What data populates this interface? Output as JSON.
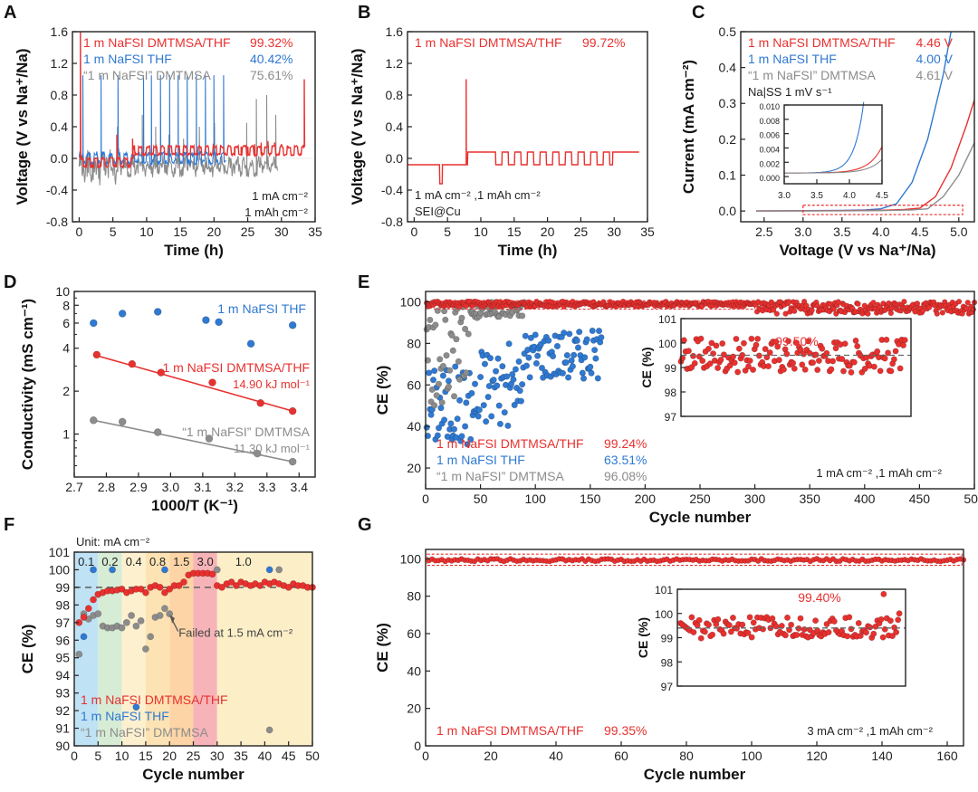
{
  "colors": {
    "red": "#e8312f",
    "blue": "#2f79d2",
    "gray": "#8c8c8c",
    "dash": "#666666"
  },
  "chart_data": [
    {
      "panel": "A",
      "type": "line",
      "xlabel": "Time (h)",
      "ylabel": "Voltage (V vs Na⁺/Na)",
      "xlim": [
        -1,
        35
      ],
      "ylim": [
        -0.8,
        1.6
      ],
      "xticks": [
        "0",
        "5",
        "10",
        "15",
        "20",
        "25",
        "30",
        "35"
      ],
      "yticks": [
        "-0.8",
        "-0.4",
        "0.0",
        "0.4",
        "0.8",
        "1.2",
        "1.6"
      ],
      "legend": [
        {
          "name": "1 m NaFSI DMTMSA/THF",
          "value": "99.32%",
          "color": "red"
        },
        {
          "name": "1 m NaFSI THF",
          "value": "40.42%",
          "color": "blue"
        },
        {
          "name": "“1 m NaFSI” DMTMSA",
          "value": "75.61%",
          "color": "gray"
        }
      ],
      "annotations": [
        "1 mA cm⁻²",
        "1 mAh cm⁻²"
      ],
      "series": [
        {
          "name": "1 m NaFSI DMTMSA/THF",
          "color": "red",
          "end_h": 33.5,
          "spikes_h": [
            0.2,
            5.6,
            7.9,
            23,
            24,
            25,
            26,
            27,
            28,
            29,
            30,
            31,
            33.4
          ],
          "spike_v": [
            1.6,
            0.3,
            0.25,
            0.15,
            0.15,
            0.15,
            0.18,
            0.2,
            0.22,
            0.2,
            0.18,
            0.15,
            1.0
          ]
        },
        {
          "name": "1 m NaFSI THF",
          "color": "blue",
          "end_h": 21.8,
          "spikes_h": [
            0.5,
            3.2,
            5.8,
            9.5,
            10.7,
            12.1,
            13.4,
            14.7,
            16.0,
            17.4,
            18.7,
            20.0,
            21.4
          ],
          "spike_v": [
            1.05,
            1.05,
            1.05,
            1.05,
            1.05,
            1.05,
            1.05,
            1.05,
            1.05,
            1.05,
            1.05,
            1.05,
            1.05
          ]
        },
        {
          "name": "“1 m NaFSI” DMTMSA",
          "color": "gray",
          "end_h": 29.5,
          "spikes_h": [
            5.7,
            9.4,
            11.3,
            13.3,
            15.5,
            17.8,
            20.1,
            24.8,
            26.3,
            27.8,
            29.2
          ],
          "spike_v": [
            0.4,
            0.55,
            0.4,
            0.3,
            0.25,
            0.4,
            0.45,
            0.45,
            0.75,
            0.8,
            0.55
          ]
        }
      ]
    },
    {
      "panel": "B",
      "type": "line",
      "xlabel": "Time (h)",
      "ylabel": "Voltage (V vs Na⁺/Na)",
      "xlim": [
        -1,
        35
      ],
      "ylim": [
        -0.8,
        1.6
      ],
      "xticks": [
        "0",
        "5",
        "10",
        "15",
        "20",
        "25",
        "30",
        "35"
      ],
      "yticks": [
        "-0.8",
        "-0.4",
        "0.0",
        "0.4",
        "0.8",
        "1.2",
        "1.6"
      ],
      "legend": [
        {
          "name": "1 m NaFSI DMTMSA/THF",
          "value": "99.72%",
          "color": "red"
        }
      ],
      "annotations": [
        "1 mA cm⁻² ,1 mAh cm⁻²",
        "SEI@Cu"
      ],
      "series": [
        {
          "name": "1 m NaFSI DMTMSA/THF",
          "color": "red",
          "segments_h": [
            [
              -1,
              3.8
            ],
            [
              4.2,
              7.6
            ],
            [
              8.0,
              11.2
            ],
            [
              11.6,
              29.8
            ],
            [
              30.2,
              33.7
            ]
          ],
          "spike_h": [
            7.8,
            33.8
          ],
          "spike_v": [
            1.0,
            1.0
          ]
        }
      ]
    },
    {
      "panel": "C",
      "type": "line",
      "xlabel": "Voltage (V vs Na⁺/Na)",
      "ylabel": "Current (mA cm⁻²)",
      "xlim": [
        2.2,
        5.2
      ],
      "ylim": [
        -0.03,
        0.5
      ],
      "xticks": [
        "2.5",
        "3.0",
        "3.5",
        "4.0",
        "4.5",
        "5.0"
      ],
      "yticks": [
        "0.0",
        "0.1",
        "0.2",
        "0.3",
        "0.4",
        "0.5"
      ],
      "legend": [
        {
          "name": "1 m NaFSI DMTMSA/THF",
          "value": "4.46 V",
          "color": "red"
        },
        {
          "name": "1 m NaFSI THF",
          "value": "4.00 V",
          "color": "blue"
        },
        {
          "name": "“1 m NaFSI” DMTMSA",
          "value": "4.61 V",
          "color": "gray"
        }
      ],
      "annotations": [
        "Na|SS 1 mV s⁻¹"
      ],
      "inset": {
        "xlim": [
          3.0,
          4.5
        ],
        "ylim": [
          -0.001,
          0.01
        ],
        "xticks": [
          "3.0",
          "3.5",
          "4.0",
          "4.5"
        ],
        "yticks": [
          "0.000",
          "0.002",
          "0.004",
          "0.006",
          "0.008",
          "0.010"
        ]
      },
      "series": [
        {
          "name": "1 m NaFSI THF",
          "color": "blue",
          "onset": 4.0,
          "x": [
            2.4,
            3.0,
            3.5,
            3.8,
            4.0,
            4.2,
            4.4,
            4.6,
            4.8,
            4.9
          ],
          "y": [
            0.0,
            0.001,
            0.0015,
            0.003,
            0.006,
            0.02,
            0.08,
            0.2,
            0.38,
            0.5
          ]
        },
        {
          "name": "1 m NaFSI DMTMSA/THF",
          "color": "red",
          "onset": 4.46,
          "x": [
            2.4,
            3.0,
            3.5,
            4.0,
            4.3,
            4.5,
            4.7,
            4.9,
            5.1,
            5.2
          ],
          "y": [
            0.0,
            0.0005,
            0.001,
            0.002,
            0.004,
            0.008,
            0.04,
            0.12,
            0.24,
            0.31
          ]
        },
        {
          "name": "“1 m NaFSI” DMTMSA",
          "color": "gray",
          "onset": 4.61,
          "x": [
            2.4,
            3.0,
            3.5,
            4.0,
            4.4,
            4.6,
            4.8,
            5.0,
            5.2
          ],
          "y": [
            0.0,
            0.0002,
            0.0005,
            0.001,
            0.003,
            0.006,
            0.04,
            0.1,
            0.19
          ]
        }
      ]
    },
    {
      "panel": "D",
      "type": "scatter",
      "xlabel": "1000/T (K⁻¹)",
      "ylabel": "Conductivity (mS cm⁻¹)",
      "xlim": [
        2.7,
        3.45
      ],
      "ylim": [
        0.5,
        10
      ],
      "yscale": "log",
      "xticks": [
        "2.7",
        "2.8",
        "2.9",
        "3.0",
        "3.1",
        "3.2",
        "3.3",
        "3.4"
      ],
      "yticks": [
        "1",
        "2",
        "4",
        "6",
        "8",
        "10"
      ],
      "ytick_values": [
        1,
        2,
        4,
        6,
        8,
        10
      ],
      "labels": [
        "1 m NaFSI THF",
        "1 m NaFSI DMTMSA/THF",
        "14.90 kJ mol⁻¹",
        "“1 m NaFSI” DMTMSA",
        "11.30 kJ mol⁻¹"
      ],
      "series": [
        {
          "name": "1 m NaFSI THF",
          "color": "blue",
          "x": [
            2.76,
            2.85,
            2.96,
            3.11,
            3.15,
            3.25,
            3.38
          ],
          "y": [
            6.0,
            7.0,
            7.2,
            6.3,
            6.1,
            4.3,
            5.8
          ]
        },
        {
          "name": "1 m NaFSI DMTMSA/THF",
          "color": "red",
          "x": [
            2.77,
            2.88,
            2.97,
            3.13,
            3.28,
            3.38
          ],
          "y": [
            3.6,
            3.1,
            2.7,
            2.3,
            1.65,
            1.45
          ],
          "fit": [
            [
              2.77,
              3.55
            ],
            [
              3.38,
              1.45
            ]
          ]
        },
        {
          "name": "“1 m NaFSI” DMTMSA",
          "color": "gray",
          "x": [
            2.76,
            2.85,
            2.96,
            3.12,
            3.27,
            3.38
          ],
          "y": [
            1.25,
            1.22,
            1.03,
            0.93,
            0.73,
            0.64
          ],
          "fit": [
            [
              2.76,
              1.25
            ],
            [
              3.38,
              0.64
            ]
          ]
        }
      ]
    },
    {
      "panel": "E",
      "type": "scatter",
      "xlabel": "Cycle number",
      "ylabel": "CE (%)",
      "xlim": [
        0,
        500
      ],
      "ylim": [
        10,
        105
      ],
      "xticks": [
        "0",
        "50",
        "100",
        "150",
        "200",
        "250",
        "300",
        "350",
        "400",
        "450",
        "500"
      ],
      "yticks": [
        "20",
        "40",
        "60",
        "80",
        "100"
      ],
      "legend": [
        {
          "name": "1 m NaFSI DMTMSA/THF",
          "value": "99.24%",
          "color": "red"
        },
        {
          "name": "1 m NaFSI THF",
          "value": "63.51%",
          "color": "blue"
        },
        {
          "name": "“1 m NaFSI” DMTMSA",
          "value": "96.08%",
          "color": "gray"
        }
      ],
      "annotations": [
        "1 mA cm⁻² ,1 mAh cm⁻²"
      ],
      "inset": {
        "xlim": [
          0,
          450
        ],
        "ylim": [
          97,
          101
        ],
        "yticks": [
          "97",
          "98",
          "99",
          "100",
          "101"
        ],
        "ylabel": "CE (%)",
        "label": "99.50%",
        "avg": 99.5
      },
      "series": [
        {
          "name": "1 m NaFSI DMTMSA/THF",
          "color": "red",
          "cycles": 500,
          "avg": 99.24
        },
        {
          "name": "1 m NaFSI THF",
          "color": "blue",
          "cycles": 160,
          "avg": 63.51
        },
        {
          "name": "“1 m NaFSI” DMTMSA",
          "color": "gray",
          "cycles": 90,
          "avg": 96.08
        }
      ]
    },
    {
      "panel": "F",
      "type": "scatter",
      "xlabel": "Cycle number",
      "ylabel": "CE (%)",
      "xlim": [
        0,
        50
      ],
      "ylim": [
        90,
        101
      ],
      "xticks": [
        "0",
        "5",
        "10",
        "15",
        "20",
        "25",
        "30",
        "35",
        "40",
        "45",
        "50"
      ],
      "yticks": [
        "90",
        "91",
        "92",
        "93",
        "94",
        "95",
        "96",
        "97",
        "98",
        "99",
        "100",
        "101"
      ],
      "unit_label": "Unit: mA cm⁻²",
      "bands": [
        {
          "label": "0.1",
          "from": 0,
          "to": 5,
          "color": "#bfe2f5"
        },
        {
          "label": "0.2",
          "from": 5,
          "to": 10,
          "color": "#d6ecd4"
        },
        {
          "label": "0.4",
          "from": 10,
          "to": 15,
          "color": "#fdf0cf"
        },
        {
          "label": "0.8",
          "from": 15,
          "to": 20,
          "color": "#fde3b3"
        },
        {
          "label": "1.5",
          "from": 20,
          "to": 25,
          "color": "#fdd4a6"
        },
        {
          "label": "3.0",
          "from": 25,
          "to": 30,
          "color": "#f7b4b8"
        },
        {
          "label": "1.0",
          "from": 30,
          "to": 50,
          "color": "#fcefc8"
        }
      ],
      "reference_line": 99,
      "annotation": "Failed at 1.5 mA cm⁻²",
      "legend": [
        {
          "name": "1 m NaFSI DMTMSA/THF",
          "color": "red"
        },
        {
          "name": "1 m NaFSI THF",
          "color": "blue"
        },
        {
          "name": "“1 m NaFSI” DMTMSA",
          "color": "gray"
        }
      ],
      "series": [
        {
          "name": "1 m NaFSI DMTMSA/THF",
          "color": "red",
          "x": [
            1,
            2,
            3,
            4,
            5,
            6,
            7,
            8,
            9,
            10,
            11,
            12,
            13,
            14,
            15,
            16,
            17,
            18,
            19,
            20,
            21,
            22,
            23,
            24,
            25,
            26,
            27,
            28,
            29,
            30,
            31,
            32,
            33,
            34,
            35,
            36,
            37,
            38,
            39,
            40,
            41,
            42,
            43,
            44,
            45,
            46,
            47,
            48,
            49,
            50
          ],
          "y": [
            97.0,
            97.3,
            97.8,
            98.3,
            98.6,
            98.7,
            98.8,
            98.8,
            98.85,
            98.9,
            98.7,
            98.8,
            98.9,
            98.9,
            98.7,
            99.0,
            99.1,
            99.0,
            98.7,
            98.9,
            99.1,
            99.1,
            99.3,
            99.7,
            99.8,
            99.8,
            99.8,
            99.8,
            99.75,
            99.1,
            99.0,
            99.2,
            99.3,
            99.1,
            99.3,
            99.2,
            99.1,
            99.2,
            99.1,
            99.3,
            99.2,
            99.3,
            99.2,
            99.1,
            99.0,
            99.2,
            99.1,
            99.1,
            99.0,
            99.0
          ]
        },
        {
          "name": "1 m NaFSI THF",
          "color": "blue",
          "x": [
            2,
            4,
            8,
            13,
            19,
            41
          ],
          "y": [
            96.2,
            100.0,
            100.0,
            92.2,
            100.0,
            100.0
          ]
        },
        {
          "name": "“1 m NaFSI” DMTMSA",
          "color": "gray",
          "x": [
            1,
            2,
            3,
            4,
            5,
            6,
            7,
            8,
            9,
            10,
            11,
            12,
            13,
            14,
            15,
            16,
            17,
            18,
            19,
            20,
            30,
            41,
            43
          ],
          "y": [
            95.2,
            97.5,
            97.2,
            97.4,
            97.5,
            96.8,
            96.7,
            96.7,
            96.8,
            96.7,
            97.0,
            97.4,
            96.8,
            97.1,
            95.5,
            96.2,
            97.3,
            97.4,
            97.8,
            97.5,
            100.0,
            90.9,
            100.0
          ]
        }
      ]
    },
    {
      "panel": "G",
      "type": "scatter",
      "xlabel": "Cycle number",
      "ylabel": "CE (%)",
      "xlim": [
        0,
        165
      ],
      "ylim": [
        0,
        105
      ],
      "xticks": [
        "0",
        "20",
        "40",
        "60",
        "80",
        "100",
        "120",
        "140",
        "160"
      ],
      "yticks": [
        "0",
        "20",
        "40",
        "60",
        "80",
        "100"
      ],
      "legend": [
        {
          "name": "1 m NaFSI DMTMSA/THF",
          "value": "99.35%",
          "color": "red"
        }
      ],
      "annotations": [
        "3 mA cm⁻² ,1 mAh cm⁻²"
      ],
      "inset": {
        "xlim": [
          75,
          148
        ],
        "ylim": [
          97,
          101
        ],
        "yticks": [
          "97",
          "98",
          "99",
          "100",
          "101"
        ],
        "ylabel": "CE (%)",
        "label": "99.40%",
        "avg": 99.4
      },
      "series": [
        {
          "name": "1 m NaFSI DMTMSA/THF",
          "color": "red",
          "cycles": 165,
          "avg": 99.35
        }
      ]
    }
  ]
}
